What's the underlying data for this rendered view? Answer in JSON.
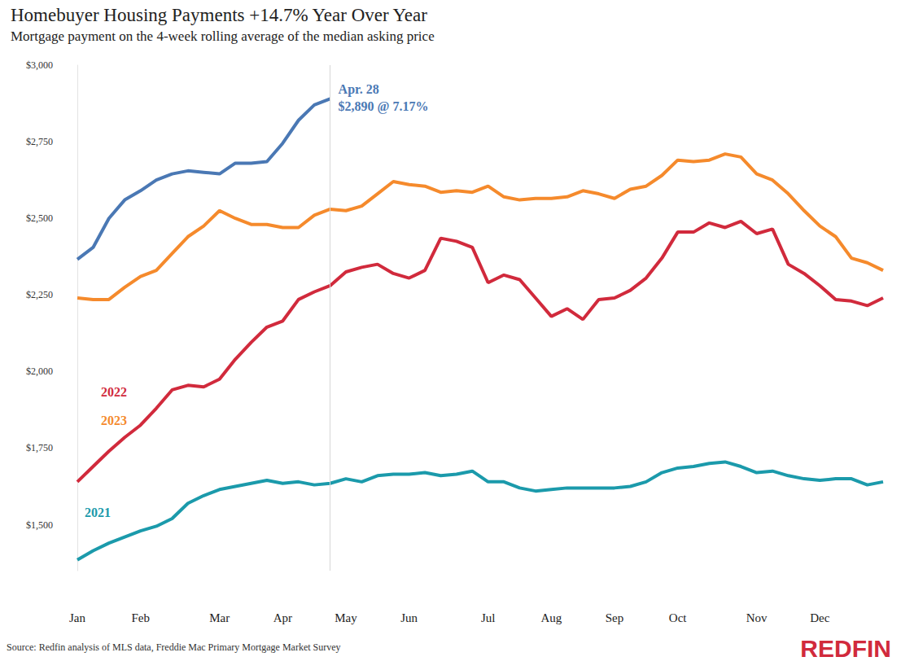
{
  "chart_data": {
    "type": "line",
    "title": "Homebuyer Housing Payments +14.7% Year Over Year",
    "subtitle": "Mortgage payment on the 4-week rolling average of the median asking price",
    "source": "Source: Redfin analysis of MLS data, Freddie Mac Primary Mortgage Market Survey",
    "logo": "REDFIN",
    "categories": [
      "Jan",
      null,
      null,
      null,
      "Feb",
      null,
      null,
      null,
      null,
      "Mar",
      null,
      null,
      null,
      "Apr",
      null,
      null,
      null,
      "May",
      null,
      null,
      null,
      "Jun",
      null,
      null,
      null,
      null,
      "Jul",
      null,
      null,
      null,
      "Aug",
      null,
      null,
      null,
      "Sep",
      null,
      null,
      null,
      "Oct",
      null,
      null,
      null,
      null,
      "Nov",
      null,
      null,
      null,
      "Dec",
      null,
      null,
      null,
      null
    ],
    "series": [
      {
        "color": "#4a78b4",
        "annotation": [
          "Apr. 28",
          "$2,890 @ 7.17%"
        ],
        "values": [
          2366,
          2405,
          2500,
          2560,
          2590,
          2625,
          2645,
          2655,
          2650,
          2645,
          2680,
          2680,
          2685,
          2745,
          2820,
          2870,
          2890,
          null,
          null,
          null,
          null,
          null,
          null,
          null,
          null,
          null,
          null,
          null,
          null,
          null,
          null,
          null,
          null,
          null,
          null,
          null,
          null,
          null,
          null,
          null,
          null,
          null,
          null,
          null,
          null,
          null,
          null,
          null,
          null,
          null,
          null,
          null
        ]
      },
      {
        "name": "2023",
        "color": "#f58a2c",
        "values": [
          2240,
          2235,
          2235,
          2275,
          2310,
          2330,
          2385,
          2440,
          2475,
          2525,
          2500,
          2480,
          2480,
          2470,
          2470,
          2510,
          2530,
          2525,
          2540,
          2580,
          2620,
          2610,
          2605,
          2585,
          2590,
          2585,
          2605,
          2570,
          2560,
          2565,
          2565,
          2570,
          2590,
          2580,
          2565,
          2595,
          2605,
          2640,
          2690,
          2685,
          2690,
          2710,
          2700,
          2645,
          2625,
          2580,
          2525,
          2475,
          2440,
          2370,
          2355,
          2330
        ]
      },
      {
        "name": "2022",
        "color": "#d12a3c",
        "values": [
          1640,
          1690,
          1740,
          1785,
          1825,
          1880,
          1940,
          1955,
          1950,
          1975,
          2040,
          2095,
          2145,
          2165,
          2235,
          2260,
          2280,
          2325,
          2340,
          2350,
          2320,
          2305,
          2330,
          2435,
          2425,
          2405,
          2290,
          2315,
          2300,
          2240,
          2180,
          2205,
          2170,
          2235,
          2240,
          2265,
          2305,
          2370,
          2455,
          2455,
          2485,
          2470,
          2490,
          2450,
          2465,
          2350,
          2320,
          2280,
          2235,
          2230,
          2215,
          2240
        ]
      },
      {
        "name": "2021",
        "color": "#1b9aab",
        "values": [
          1385,
          1415,
          1440,
          1460,
          1480,
          1495,
          1520,
          1570,
          1595,
          1615,
          1625,
          1635,
          1645,
          1635,
          1640,
          1630,
          1635,
          1650,
          1640,
          1660,
          1665,
          1665,
          1670,
          1660,
          1665,
          1675,
          1640,
          1640,
          1620,
          1610,
          1615,
          1620,
          1620,
          1620,
          1620,
          1625,
          1640,
          1670,
          1685,
          1690,
          1700,
          1705,
          1690,
          1670,
          1675,
          1660,
          1650,
          1645,
          1650,
          1650,
          1630,
          1640
        ]
      }
    ],
    "ylim": [
      1350,
      3000
    ],
    "yticks": [
      {
        "value": 1500,
        "label": "$1,500"
      },
      {
        "value": 1750,
        "label": "$1,750"
      },
      {
        "value": 2000,
        "label": "$2,000"
      },
      {
        "value": 2250,
        "label": "$2,250"
      },
      {
        "value": 2500,
        "label": "$2,500"
      },
      {
        "value": 2750,
        "label": "$2,750"
      },
      {
        "value": 3000,
        "label": "$3,000"
      }
    ],
    "grid": false
  }
}
